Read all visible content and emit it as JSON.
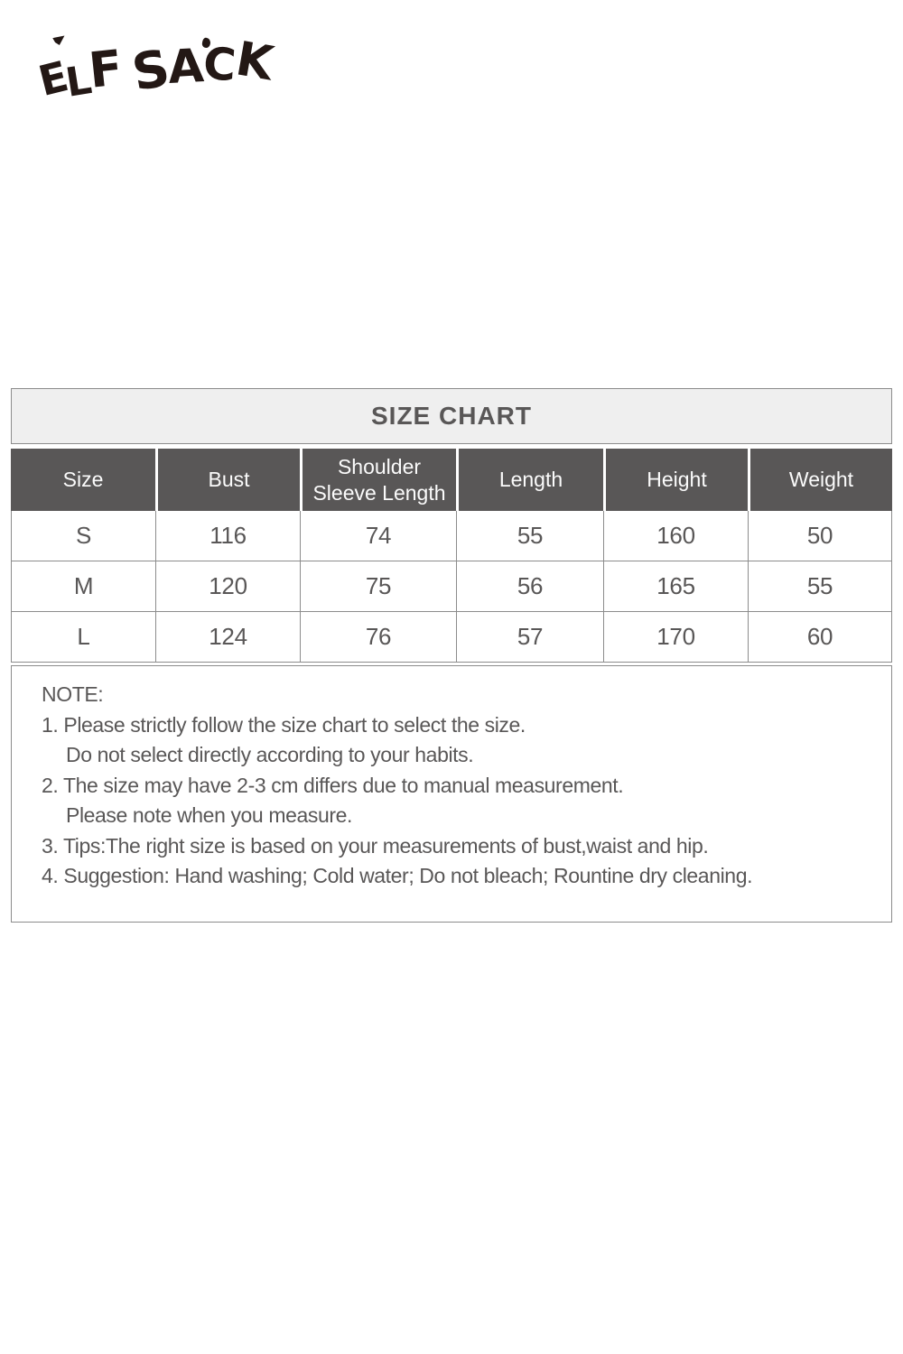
{
  "brand": {
    "name": "ELF SACK",
    "letters": [
      "E",
      "L",
      "F",
      "S",
      "A",
      "C",
      "K"
    ],
    "logo_color": "#231815"
  },
  "size_chart": {
    "title": "SIZE CHART",
    "headers": [
      "Size",
      "Bust",
      "Shoulder\nSleeve Length",
      "Length",
      "Height",
      "Weight"
    ],
    "rows": [
      [
        "S",
        "116",
        "74",
        "55",
        "160",
        "50"
      ],
      [
        "M",
        "120",
        "75",
        "56",
        "165",
        "55"
      ],
      [
        "L",
        "124",
        "76",
        "57",
        "170",
        "60"
      ]
    ]
  },
  "notes": {
    "heading": "NOTE:",
    "lines": [
      "1. Please strictly follow the size chart to select the size.",
      "Do not select directly according to your habits.",
      "2. The size may have 2-3 cm differs due to manual measurement.",
      "Please note when you measure.",
      "3. Tips:The right size is based on your measurements of bust,waist and hip.",
      "4. Suggestion: Hand washing; Cold water; Do not bleach; Rountine dry cleaning."
    ]
  },
  "colors": {
    "header_background": "#595757",
    "header_text": "#fbfbfb",
    "title_background": "#efefef",
    "border": "#8c8c8c",
    "body_text": "#595757",
    "logo": "#231815"
  }
}
